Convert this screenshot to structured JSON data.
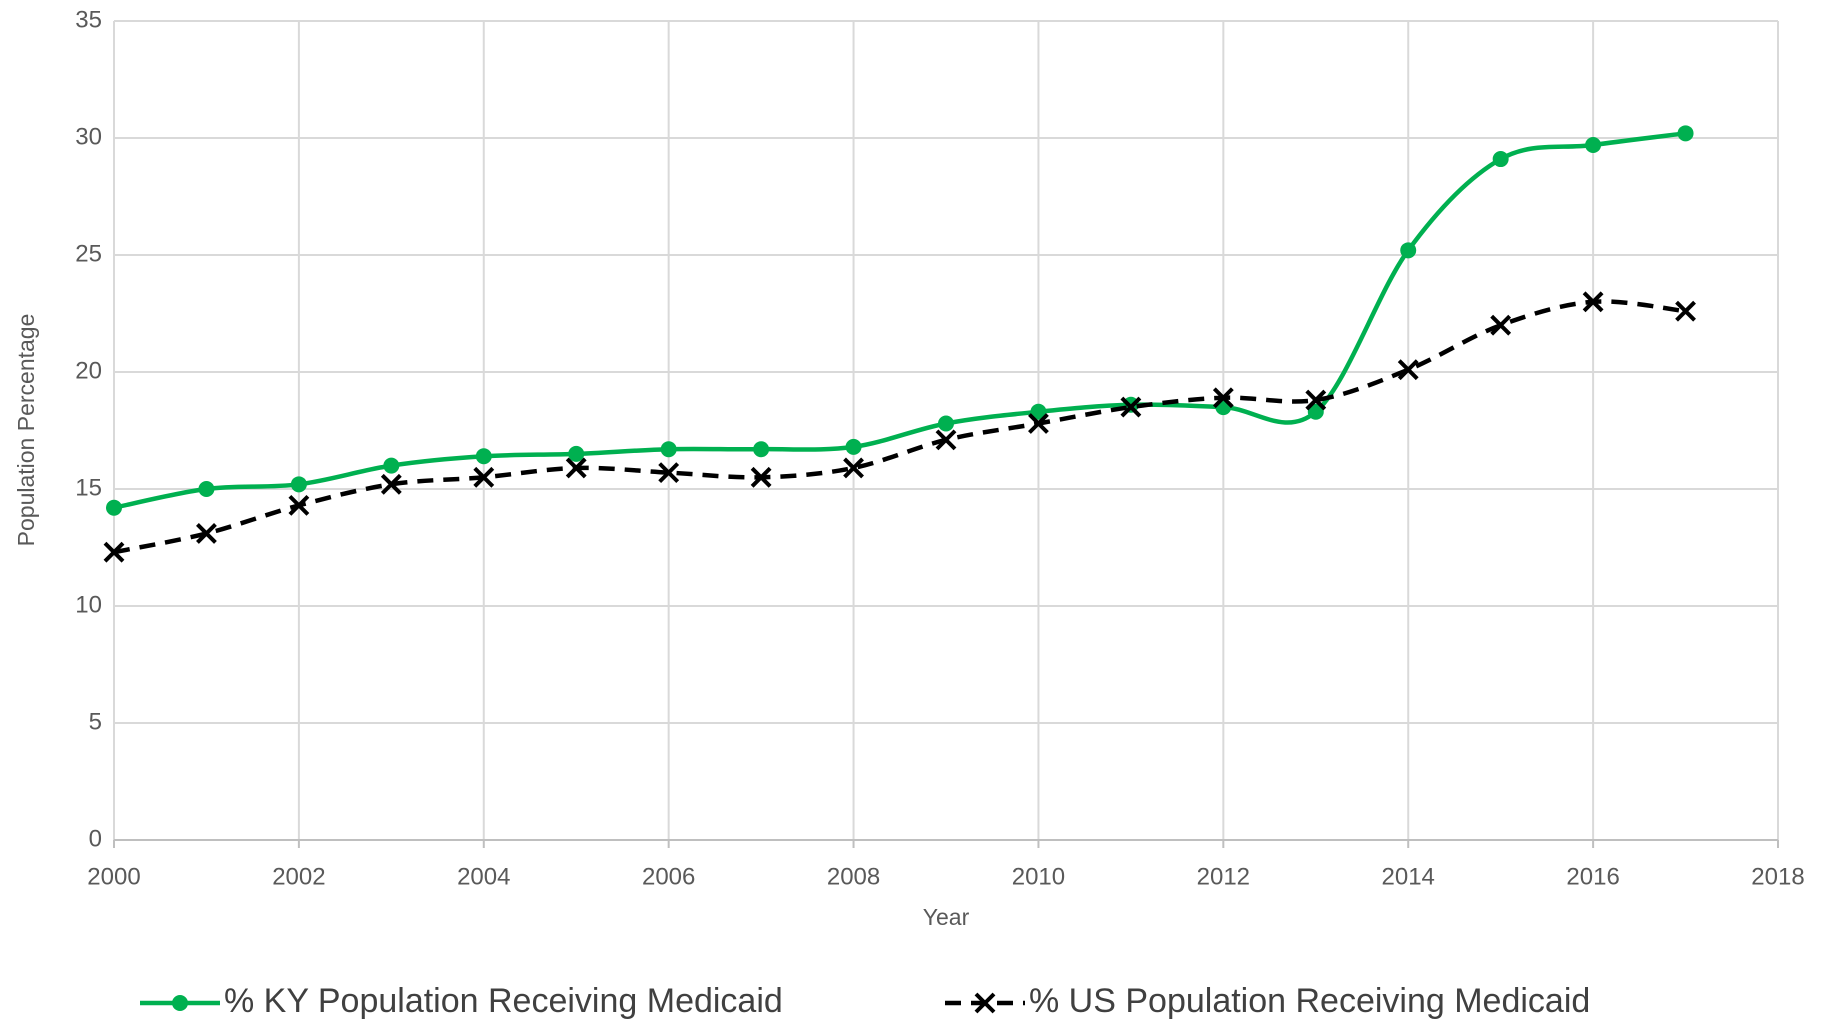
{
  "chart_data": {
    "type": "line",
    "x_label": "Year",
    "y_label": "Population Percentage",
    "x": [
      2000,
      2001,
      2002,
      2003,
      2004,
      2005,
      2006,
      2007,
      2008,
      2009,
      2010,
      2011,
      2012,
      2013,
      2014,
      2015,
      2016,
      2017
    ],
    "series": [
      {
        "name": "% KY Population Receiving Medicaid",
        "color": "#00b050",
        "marker": "circle",
        "dashed": false,
        "values": [
          14.2,
          15.0,
          15.2,
          16.0,
          16.4,
          16.5,
          16.7,
          16.7,
          16.8,
          17.8,
          18.3,
          18.6,
          18.5,
          18.3,
          25.2,
          29.1,
          29.7,
          30.2
        ]
      },
      {
        "name": "% US Population Receiving Medicaid",
        "color": "#000000",
        "marker": "x",
        "dashed": true,
        "values": [
          12.3,
          13.1,
          14.3,
          15.2,
          15.5,
          15.9,
          15.7,
          15.5,
          15.9,
          17.1,
          17.8,
          18.5,
          18.9,
          18.8,
          20.1,
          22.0,
          23.0,
          22.6
        ]
      }
    ],
    "xlim": [
      2000,
      2018
    ],
    "xticks": [
      2000,
      2002,
      2004,
      2006,
      2008,
      2010,
      2012,
      2014,
      2016,
      2018
    ],
    "ylim": [
      0,
      35
    ],
    "yticks": [
      0,
      5,
      10,
      15,
      20,
      25,
      30,
      35
    ],
    "grid": true,
    "smooth": true,
    "legend": "bottom"
  }
}
